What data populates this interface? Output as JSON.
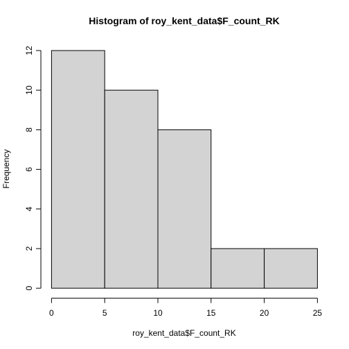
{
  "chart_data": {
    "type": "bar",
    "title": "Histogram of roy_kent_data$F_count_RK",
    "xlabel": "roy_kent_data$F_count_RK",
    "ylabel": "Frequency",
    "bins": [
      {
        "start": 0,
        "end": 5,
        "count": 12
      },
      {
        "start": 5,
        "end": 10,
        "count": 10
      },
      {
        "start": 10,
        "end": 15,
        "count": 8
      },
      {
        "start": 15,
        "end": 20,
        "count": 2
      },
      {
        "start": 20,
        "end": 25,
        "count": 2
      }
    ],
    "xlim": [
      0,
      25
    ],
    "ylim": [
      0,
      12
    ],
    "xticks": [
      0,
      5,
      10,
      15,
      20,
      25
    ],
    "yticks": [
      0,
      2,
      4,
      6,
      8,
      10,
      12
    ],
    "grid": false,
    "legend": "none",
    "bar_color": "#d3d3d3",
    "edge_color": "#000000"
  }
}
